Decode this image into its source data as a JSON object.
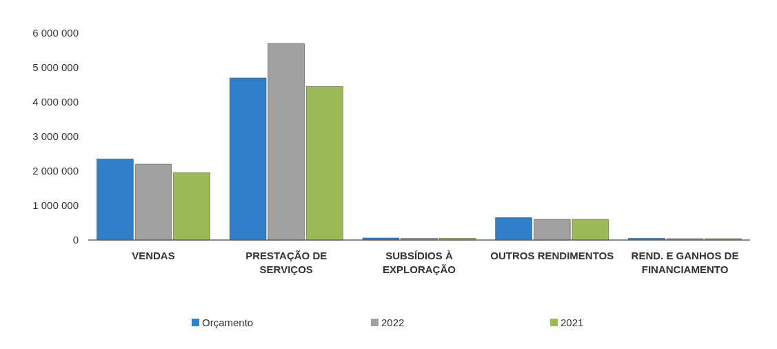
{
  "chart_data": {
    "type": "bar",
    "categories": [
      "VENDAS",
      "PRESTAÇÃO DE SERVIÇOS",
      "SUBSÍDIOS À EXPLORAÇÃO",
      "OUTROS RENDIMENTOS",
      "REND. E GANHOS DE FINANCIAMENTO"
    ],
    "series": [
      {
        "name": "Orçamento",
        "color": "#2f7fc8",
        "values": [
          2350000,
          4700000,
          60000,
          650000,
          50000
        ]
      },
      {
        "name": "2022",
        "color": "#a0a0a0",
        "values": [
          2200000,
          5700000,
          50000,
          600000,
          40000
        ]
      },
      {
        "name": "2021",
        "color": "#9cbb58",
        "values": [
          1950000,
          4450000,
          50000,
          600000,
          40000
        ]
      }
    ],
    "ylim": [
      0,
      6000000
    ],
    "yticks": [
      {
        "value": 0,
        "label": "0"
      },
      {
        "value": 1000000,
        "label": "1 000 000"
      },
      {
        "value": 2000000,
        "label": "2 000 000"
      },
      {
        "value": 3000000,
        "label": "3 000 000"
      },
      {
        "value": 4000000,
        "label": "4 000 000"
      },
      {
        "value": 5000000,
        "label": "5 000 000"
      },
      {
        "value": 6000000,
        "label": "6 000 000"
      }
    ],
    "grid": false,
    "legend": "bottom"
  }
}
